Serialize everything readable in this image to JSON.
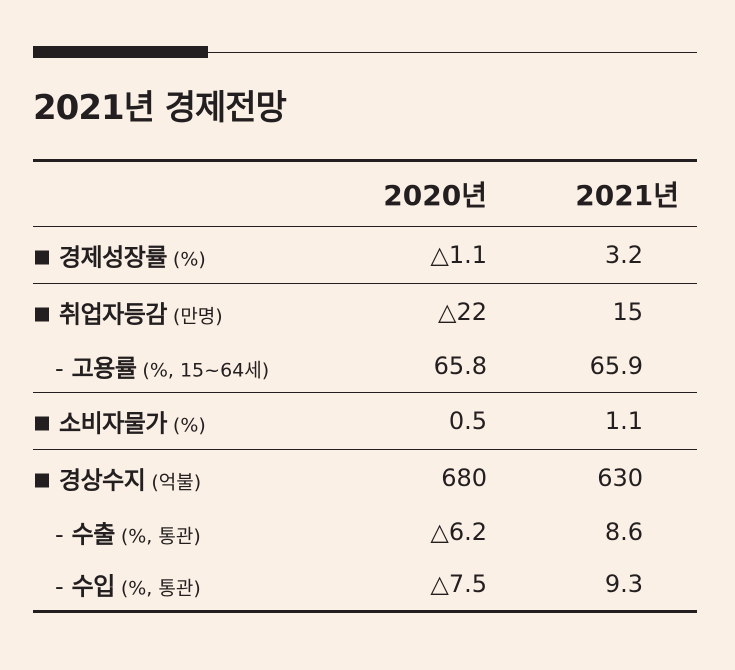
{
  "title": "2021년 경제전망",
  "header": {
    "col_2020": "2020년",
    "col_2021": "2021년"
  },
  "rows": [
    {
      "name": "경제성장률",
      "unit": "(%)",
      "v2020": "△1.1",
      "v2021": "3.2"
    },
    {
      "name": "취업자등감",
      "unit": "(만명)",
      "v2020": "△22",
      "v2021": "15"
    },
    {
      "name": "고용률",
      "unit": "(%, 15~64세)",
      "v2020": "65.8",
      "v2021": "65.9"
    },
    {
      "name": "소비자물가",
      "unit": "(%)",
      "v2020": "0.5",
      "v2021": "1.1"
    },
    {
      "name": "경상수지",
      "unit": "(억불)",
      "v2020": "680",
      "v2021": "630"
    },
    {
      "name": "수출",
      "unit": "(%, 통관)",
      "v2020": "△6.2",
      "v2021": "8.6"
    },
    {
      "name": "수입",
      "unit": "(%, 통관)",
      "v2020": "△7.5",
      "v2021": "9.3"
    }
  ],
  "bullet_mark": "■",
  "sub_mark": "-"
}
